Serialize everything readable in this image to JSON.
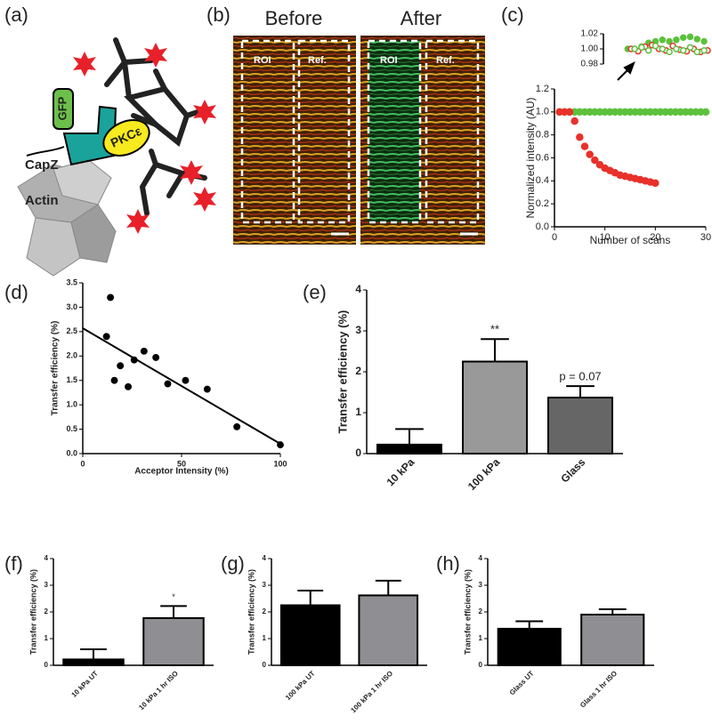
{
  "panel_labels": [
    "(a)",
    "(b)",
    "(c)",
    "(d)",
    "(e)",
    "(f)",
    "(g)",
    "(h)"
  ],
  "diagram": {
    "labels": [
      "GFP",
      "PKCε",
      "CapZ",
      "Actin"
    ]
  },
  "images": {
    "titles": [
      "Before",
      "After"
    ],
    "regions": [
      "ROI",
      "Ref.",
      "ROI",
      "Ref."
    ]
  },
  "chart_data": [
    {
      "type": "scatter",
      "xlabel": "Number of scans",
      "ylabel": "Normalized intensity (AU)",
      "xlim": [
        0,
        30
      ],
      "xticks": [
        0,
        10,
        20,
        30
      ],
      "ylim": [
        0,
        1.2
      ],
      "yticks": [
        {
          "value": 0,
          "label": "0.0"
        },
        0.2,
        0.4,
        0.6,
        0.8,
        {
          "value": 1,
          "label": "1.0"
        },
        1.2
      ],
      "series": [
        {
          "color": "#5cc13c",
          "filled": true,
          "x": [
            1,
            2,
            3,
            4,
            5,
            6,
            7,
            8,
            9,
            10,
            11,
            12,
            13,
            14,
            15,
            16,
            17,
            18,
            19,
            20,
            21,
            22,
            23,
            24,
            25,
            26,
            27,
            28,
            29,
            30
          ],
          "values": [
            1,
            1,
            1,
            1,
            1,
            1,
            1,
            1,
            1,
            1,
            1,
            1,
            1,
            1,
            1,
            1,
            1,
            1,
            1,
            1,
            1,
            1,
            1,
            1,
            1,
            1,
            1,
            1,
            1,
            1
          ]
        },
        {
          "color": "#e8312a",
          "filled": true,
          "x": [
            1,
            2,
            3,
            4,
            5,
            6,
            7,
            8,
            9,
            10,
            11,
            12,
            13,
            14,
            15,
            16,
            17,
            18,
            19,
            20
          ],
          "values": [
            1,
            1,
            1,
            0.92,
            0.78,
            0.7,
            0.63,
            0.58,
            0.54,
            0.51,
            0.49,
            0.47,
            0.45,
            0.44,
            0.43,
            0.42,
            0.41,
            0.4,
            0.39,
            0.38
          ]
        }
      ]
    },
    {
      "type": "scatter",
      "xlim": [
        0,
        30
      ],
      "ylim": [
        0.98,
        1.02
      ],
      "yticks": [
        0.98,
        {
          "value": 1,
          "label": "1.00"
        },
        1.02
      ],
      "series": [
        {
          "color": "#5cc13c",
          "filled": true,
          "x": [
            7,
            9,
            11,
            13,
            15,
            17,
            19,
            21,
            23,
            25,
            27,
            29
          ],
          "values": [
            1,
            1,
            1.003,
            1.008,
            1.01,
            1.012,
            1.01,
            1.012,
            1.015,
            1.016,
            1.013,
            1.01
          ]
        },
        {
          "color": "#e8312a",
          "filled": false,
          "x": [
            8,
            10,
            12,
            14,
            16,
            18,
            20,
            22,
            24,
            26,
            28,
            30
          ],
          "values": [
            1,
            0.997,
            1.003,
            1.005,
            1,
            0.998,
            1.004,
            0.999,
            0.997,
            1,
            0.996,
            0.998
          ]
        },
        {
          "color": "#5cc13c",
          "filled": false,
          "x": [
            9,
            11,
            13,
            15,
            17,
            19,
            21,
            23,
            25,
            27,
            29
          ],
          "values": [
            1,
            1.002,
            0.998,
            1.004,
            1,
            0.996,
            1,
            0.998,
            1.002,
            0.996,
            0.998
          ]
        }
      ]
    },
    {
      "type": "scatter",
      "xlabel": "Acceptor Intensity (%)",
      "ylabel": "Transfer efficiency (%)",
      "xlim": [
        0,
        100
      ],
      "xticks": [
        0,
        50,
        100
      ],
      "ylim": [
        0,
        3.5
      ],
      "yticks": [
        {
          "value": 0,
          "label": "0.0"
        },
        0.5,
        {
          "value": 1,
          "label": "1.0"
        },
        1.5,
        {
          "value": 2,
          "label": "2.0"
        },
        2.5,
        {
          "value": 3,
          "label": "3.0"
        },
        3.5
      ],
      "series": [
        {
          "color": "#000000",
          "filled": true,
          "x": [
            12,
            14,
            16,
            19,
            23,
            26,
            31,
            37,
            43,
            52,
            63,
            78,
            100
          ],
          "values": [
            2.4,
            3.2,
            1.5,
            1.8,
            1.37,
            1.92,
            2.1,
            1.97,
            1.43,
            1.5,
            1.32,
            0.55,
            0.18
          ]
        }
      ],
      "trendline": {
        "x": [
          0,
          100
        ],
        "y": [
          2.57,
          0.2
        ]
      }
    },
    {
      "type": "bar",
      "ylabel": "Transfer efficiency (%)",
      "categories": [
        "10 kPa",
        "100 kPa",
        "Glass"
      ],
      "values": [
        0.22,
        2.25,
        1.37
      ],
      "errors": [
        0.38,
        0.55,
        0.28
      ],
      "colors": [
        "#000000",
        "#999999",
        "#666666"
      ],
      "significance": [
        null,
        "**",
        "p = 0.07"
      ],
      "ylim": [
        0,
        4
      ],
      "yticks": [
        0,
        1,
        2,
        3,
        4
      ]
    },
    {
      "type": "bar",
      "ylabel": "Transfer efficiency (%)",
      "categories": [
        "10 kPa UT",
        "10 kPa 1 hr ISO"
      ],
      "values": [
        0.22,
        1.77
      ],
      "errors": [
        0.38,
        0.45
      ],
      "colors": [
        "#000000",
        "#8e8e93"
      ],
      "significance": [
        null,
        "*"
      ],
      "ylim": [
        0,
        4
      ],
      "yticks": [
        0,
        1,
        2,
        3,
        4
      ]
    },
    {
      "type": "bar",
      "ylabel": "Transfer efficiency (%)",
      "categories": [
        "100 kPa UT",
        "100 kPa 1 hr ISO"
      ],
      "values": [
        2.25,
        2.62
      ],
      "errors": [
        0.55,
        0.55
      ],
      "colors": [
        "#000000",
        "#8e8e93"
      ],
      "ylim": [
        0,
        4
      ],
      "yticks": [
        0,
        1,
        2,
        3,
        4
      ]
    },
    {
      "type": "bar",
      "ylabel": "Transfer efficiency (%)",
      "categories": [
        "Glass UT",
        "Glass 1 hr ISO"
      ],
      "values": [
        1.37,
        1.9
      ],
      "errors": [
        0.28,
        0.2
      ],
      "colors": [
        "#000000",
        "#8e8e93"
      ],
      "ylim": [
        0,
        4
      ],
      "yticks": [
        0,
        1,
        2,
        3,
        4
      ]
    }
  ]
}
